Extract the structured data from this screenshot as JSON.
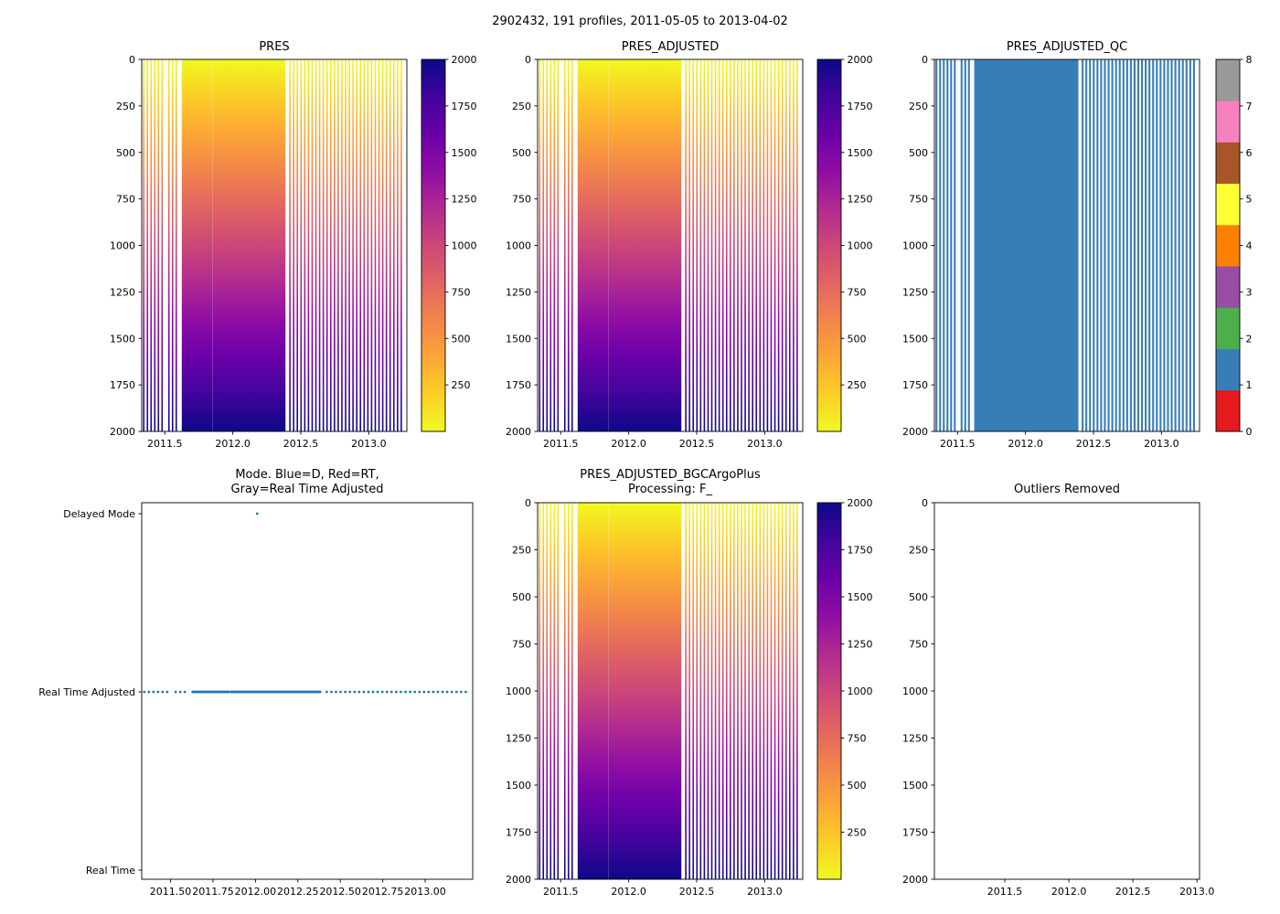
{
  "figure": {
    "title": "2902432, 191 profiles, 2011-05-05 to 2013-04-02",
    "background": "#ffffff"
  },
  "chart_data": {
    "type": "heatmap",
    "description": "Six-panel Argo float pressure diagnostics figure",
    "panels": [
      {
        "id": "pres",
        "type": "heatmap",
        "title": "PRES"
      },
      {
        "id": "pres_adjusted",
        "type": "heatmap",
        "title": "PRES_ADJUSTED"
      },
      {
        "id": "qc",
        "type": "heatmap",
        "title": "PRES_ADJUSTED_QC",
        "flag_value": 1
      },
      {
        "id": "mode",
        "type": "scatter",
        "title": "Mode. Blue=D, Red=RT,\nGray=Real Time Adjusted",
        "categories": [
          "Real Time",
          "Real Time Adjusted",
          "Delayed Mode"
        ]
      },
      {
        "id": "bgc",
        "type": "heatmap",
        "title": "PRES_ADJUSTED_BGCArgoPlus\nProcessing: F_"
      },
      {
        "id": "outliers",
        "type": "empty",
        "title": "Outliers Removed"
      }
    ],
    "time_axis": {
      "range": [
        2011.33,
        2013.28
      ],
      "ticks": [
        2011.5,
        2012.0,
        2012.5,
        2013.0
      ],
      "tick_labels": [
        "2011.5",
        "2012.0",
        "2012.5",
        "2013.0"
      ]
    },
    "mode_time_ticks": {
      "ticks": [
        2011.5,
        2011.75,
        2012.0,
        2012.25,
        2012.5,
        2012.75,
        2013.0
      ],
      "tick_labels": [
        "2011.50",
        "2011.75",
        "2012.00",
        "2012.25",
        "2012.50",
        "2012.75",
        "2013.00"
      ]
    },
    "outliers_time_axis": {
      "range": [
        2010.95,
        2013.02
      ],
      "ticks": [
        2011.5,
        2012.0,
        2012.5,
        2013.0
      ],
      "tick_labels": [
        "2011.5",
        "2012.0",
        "2012.5",
        "2013.0"
      ]
    },
    "pressure_axis": {
      "range": [
        0,
        2000
      ],
      "inverted": true,
      "ticks": [
        0,
        250,
        500,
        750,
        1000,
        1250,
        1500,
        1750,
        2000
      ]
    },
    "value_colorbar": {
      "range": [
        0,
        2000
      ],
      "ticks": [
        250,
        500,
        750,
        1000,
        1250,
        1500,
        1750,
        2000
      ],
      "colormap": "plasma_r"
    },
    "colormap_plasma_r_top_to_bottom": [
      "#f0f921",
      "#fcce25",
      "#fca636",
      "#f2844b",
      "#e16462",
      "#cc4778",
      "#b12a90",
      "#8f0da4",
      "#6a00a8",
      "#41049d",
      "#0d0887"
    ],
    "qc_colorbar": {
      "ticks": [
        0,
        1,
        2,
        3,
        4,
        5,
        6,
        7,
        8
      ],
      "colors": [
        "#e41a1c",
        "#377eb8",
        "#4daf4a",
        "#984ea3",
        "#ff7f00",
        "#ffff33",
        "#a65628",
        "#f781bf",
        "#999999"
      ]
    },
    "qc_panel": {
      "flag_color": "#377eb8"
    },
    "mode_panel": {
      "marker_color": "#1f77b4",
      "real_time_adjusted": "all profiles",
      "delayed_mode_times": [
        2012.01
      ]
    },
    "profile_time_segments_estimated": [
      {
        "start": 2011.345,
        "end": 2011.48,
        "step": 0.027
      },
      {
        "start": 2011.53,
        "end": 2011.585,
        "step": 0.027
      },
      {
        "start": 2011.63,
        "end": 2011.845,
        "step": 0.005
      },
      {
        "start": 2011.857,
        "end": 2012.38,
        "step": 0.005
      },
      {
        "start": 2012.42,
        "end": 2013.24,
        "step": 0.0273
      }
    ],
    "profile_count": 191,
    "date_range": [
      "2011-05-05",
      "2013-04-02"
    ]
  }
}
